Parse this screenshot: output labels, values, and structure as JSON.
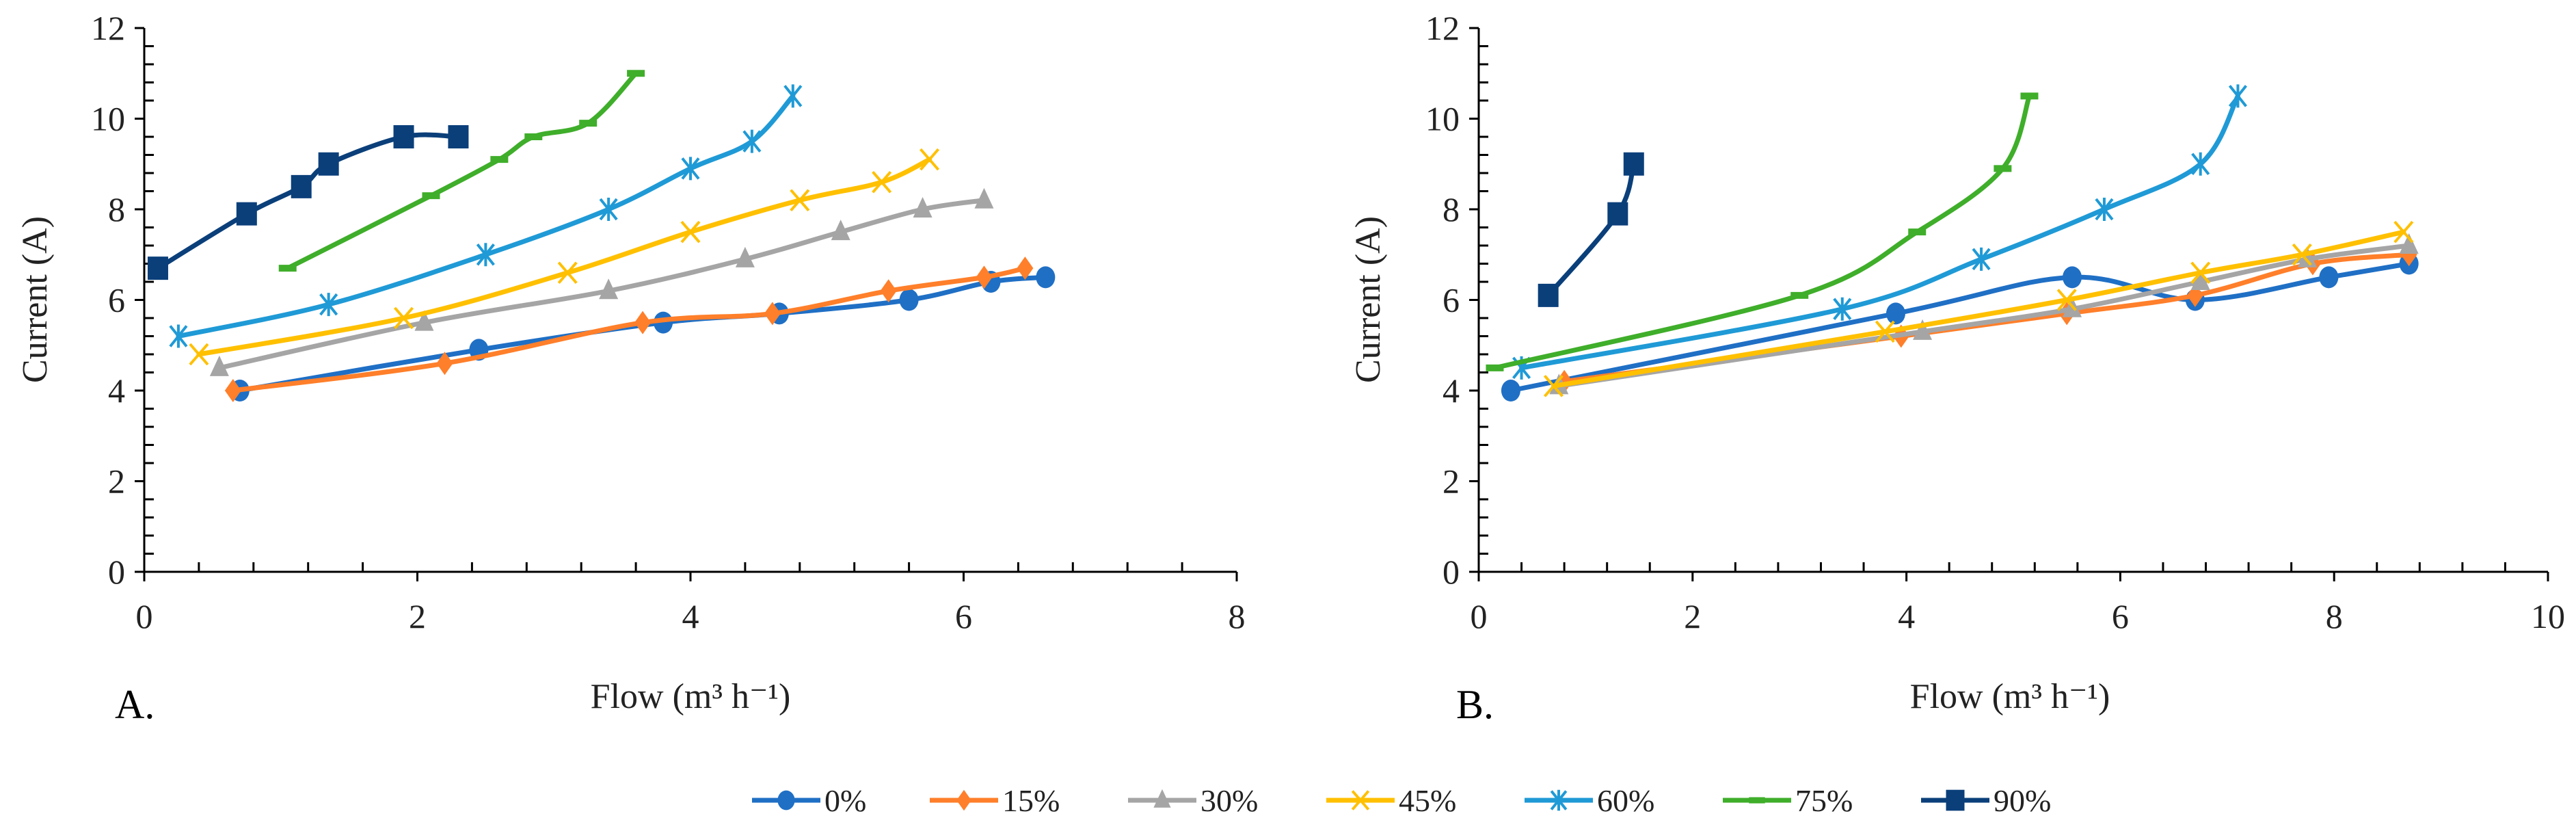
{
  "series_meta": [
    {
      "name": "0%",
      "color": "#1f6fc5",
      "marker": "circle"
    },
    {
      "name": "15%",
      "color": "#ff7f2a",
      "marker": "diamond"
    },
    {
      "name": "30%",
      "color": "#a5a5a5",
      "marker": "triangle"
    },
    {
      "name": "45%",
      "color": "#ffc000",
      "marker": "x"
    },
    {
      "name": "60%",
      "color": "#1f9ad6",
      "marker": "star"
    },
    {
      "name": "75%",
      "color": "#3fae2a",
      "marker": "dash"
    },
    {
      "name": "90%",
      "color": "#0a3f7a",
      "marker": "square"
    }
  ],
  "chart_data": [
    {
      "type": "line",
      "panel_label": "A.",
      "xlabel": "Flow (m³ h⁻¹)",
      "ylabel": "Current (A)",
      "xlim": [
        0,
        8
      ],
      "ylim": [
        0,
        12
      ],
      "xticks": [
        "0",
        "2",
        "4",
        "6",
        "8"
      ],
      "yticks": [
        "0",
        "2",
        "4",
        "6",
        "8",
        "10",
        "12"
      ],
      "series": [
        {
          "name": "0%",
          "x": [
            0.7,
            2.45,
            3.8,
            4.65,
            5.6,
            6.2,
            6.6
          ],
          "y": [
            4.0,
            4.9,
            5.5,
            5.7,
            6.0,
            6.4,
            6.5
          ]
        },
        {
          "name": "15%",
          "x": [
            0.65,
            2.2,
            3.65,
            4.6,
            5.45,
            6.15,
            6.45
          ],
          "y": [
            4.0,
            4.6,
            5.5,
            5.7,
            6.2,
            6.5,
            6.7
          ]
        },
        {
          "name": "30%",
          "x": [
            0.55,
            2.05,
            3.4,
            4.4,
            5.1,
            5.7,
            6.15
          ],
          "y": [
            4.5,
            5.5,
            6.2,
            6.9,
            7.5,
            8.0,
            8.2
          ]
        },
        {
          "name": "45%",
          "x": [
            0.4,
            1.9,
            3.1,
            4.0,
            4.8,
            5.4,
            5.75
          ],
          "y": [
            4.8,
            5.6,
            6.6,
            7.5,
            8.2,
            8.6,
            9.1
          ]
        },
        {
          "name": "60%",
          "x": [
            0.25,
            1.35,
            2.5,
            3.4,
            4.0,
            4.45,
            4.75
          ],
          "y": [
            5.2,
            5.9,
            7.0,
            8.0,
            8.9,
            9.5,
            10.5
          ]
        },
        {
          "name": "75%",
          "x": [
            1.05,
            2.1,
            2.6,
            2.85,
            3.25,
            3.6
          ],
          "y": [
            6.7,
            8.3,
            9.1,
            9.6,
            9.9,
            11.0
          ]
        },
        {
          "name": "90%",
          "x": [
            0.1,
            0.75,
            1.15,
            1.35,
            1.9,
            2.3
          ],
          "y": [
            6.7,
            7.9,
            8.5,
            9.0,
            9.6,
            9.6
          ]
        }
      ]
    },
    {
      "type": "line",
      "panel_label": "B.",
      "xlabel": "Flow (m³ h⁻¹)",
      "ylabel": "Current (A)",
      "xlim": [
        0,
        10
      ],
      "ylim": [
        0,
        12
      ],
      "xticks": [
        "0",
        "2",
        "4",
        "6",
        "8",
        "10"
      ],
      "yticks": [
        "0",
        "2",
        "4",
        "6",
        "8",
        "10",
        "12"
      ],
      "series": [
        {
          "name": "0%",
          "x": [
            0.3,
            3.9,
            5.55,
            6.7,
            7.95,
            8.7
          ],
          "y": [
            4.0,
            5.7,
            6.5,
            6.0,
            6.5,
            6.8
          ]
        },
        {
          "name": "15%",
          "x": [
            0.8,
            3.95,
            5.5,
            6.7,
            7.8,
            8.7
          ],
          "y": [
            4.2,
            5.2,
            5.7,
            6.1,
            6.8,
            7.0
          ]
        },
        {
          "name": "30%",
          "x": [
            0.75,
            4.15,
            5.55,
            6.75,
            7.75,
            8.7
          ],
          "y": [
            4.1,
            5.3,
            5.8,
            6.4,
            6.9,
            7.2
          ]
        },
        {
          "name": "45%",
          "x": [
            0.7,
            3.8,
            5.5,
            6.75,
            7.7,
            8.65
          ],
          "y": [
            4.1,
            5.3,
            6.0,
            6.6,
            7.0,
            7.5
          ]
        },
        {
          "name": "60%",
          "x": [
            0.4,
            3.4,
            4.7,
            5.85,
            6.75,
            7.1
          ],
          "y": [
            4.5,
            5.8,
            6.9,
            8.0,
            9.0,
            10.5
          ]
        },
        {
          "name": "75%",
          "x": [
            0.15,
            3.0,
            4.1,
            4.9,
            5.15
          ],
          "y": [
            4.5,
            6.1,
            7.5,
            8.9,
            10.5
          ]
        },
        {
          "name": "90%",
          "x": [
            0.65,
            1.3,
            1.45
          ],
          "y": [
            6.1,
            7.9,
            9.0
          ]
        }
      ]
    }
  ],
  "legend": {
    "placement": "bottom-center"
  }
}
